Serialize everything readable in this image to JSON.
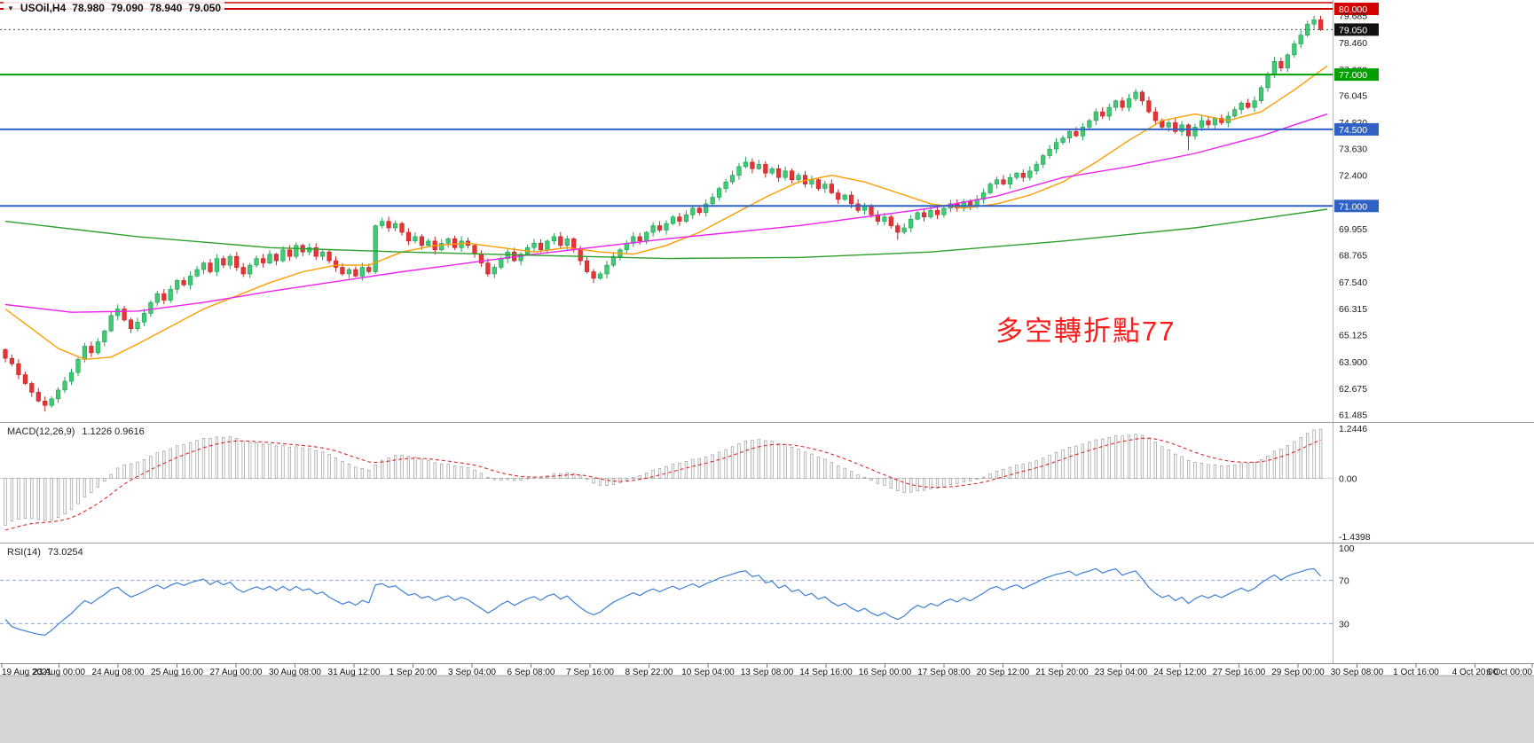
{
  "icons": {
    "symbol_dropdown": "▼"
  },
  "header": {
    "symbol": "USOil,H4",
    "open": "78.980",
    "high": "79.090",
    "low": "78.940",
    "close": "79.050"
  },
  "annotation": {
    "text": "多空轉折點77",
    "color": "#ff1a1a"
  },
  "price_axis": {
    "labels": [
      {
        "text": "80.000",
        "price": 80.0,
        "bg": "#d40000"
      },
      {
        "text": "79.685",
        "price": 79.685
      },
      {
        "text": "79.050",
        "price": 79.05,
        "bg": "#111111"
      },
      {
        "text": "78.460",
        "price": 78.46
      },
      {
        "text": "77.230",
        "price": 77.23
      },
      {
        "text": "77.000",
        "price": 77.0,
        "bg": "#00a000"
      },
      {
        "text": "76.045",
        "price": 76.045
      },
      {
        "text": "74.820",
        "price": 74.82
      },
      {
        "text": "74.500",
        "price": 74.5,
        "bg": "#2f62c4"
      },
      {
        "text": "73.630",
        "price": 73.63
      },
      {
        "text": "72.400",
        "price": 72.4
      },
      {
        "text": "71.000",
        "price": 71.0,
        "bg": "#2f62c4"
      },
      {
        "text": "69.955",
        "price": 69.955
      },
      {
        "text": "68.765",
        "price": 68.765
      },
      {
        "text": "67.540",
        "price": 67.54
      },
      {
        "text": "66.315",
        "price": 66.315
      },
      {
        "text": "65.125",
        "price": 65.125
      },
      {
        "text": "63.900",
        "price": 63.9
      },
      {
        "text": "62.675",
        "price": 62.675
      },
      {
        "text": "61.485",
        "price": 61.485
      }
    ]
  },
  "time_axis": {
    "labels": [
      "19 Aug 2021",
      "23 Aug 00:00",
      "24 Aug 08:00",
      "25 Aug 16:00",
      "27 Aug 00:00",
      "30 Aug 08:00",
      "31 Aug 12:00",
      "1 Sep 20:00",
      "3 Sep 04:00",
      "6 Sep 08:00",
      "7 Sep 16:00",
      "8 Sep 22:00",
      "10 Sep 04:00",
      "13 Sep 08:00",
      "14 Sep 16:00",
      "16 Sep 00:00",
      "17 Sep 08:00",
      "20 Sep 12:00",
      "21 Sep 20:00",
      "23 Sep 04:00",
      "24 Sep 12:00",
      "27 Sep 16:00",
      "29 Sep 00:00",
      "30 Sep 08:00",
      "1 Oct 16:00",
      "4 Oct 20:00",
      "6 Oct 00:00"
    ]
  },
  "chart_data": [
    {
      "type": "candlestick",
      "panel": "price",
      "symbol": "USOil",
      "timeframe": "H4",
      "ohlc_display": {
        "open": "78.980",
        "high": "79.090",
        "low": "78.940",
        "close": "79.050"
      },
      "y_range": [
        61.22,
        80.16
      ],
      "first_open": 64.45,
      "closes": [
        64.05,
        63.8,
        63.3,
        62.9,
        62.5,
        62.1,
        61.9,
        62.2,
        62.6,
        63.0,
        63.4,
        64.0,
        64.6,
        64.3,
        64.8,
        65.3,
        66.0,
        66.3,
        65.8,
        65.4,
        65.7,
        66.1,
        66.6,
        67.0,
        66.7,
        67.2,
        67.6,
        67.4,
        67.8,
        68.1,
        68.4,
        68.0,
        68.6,
        68.3,
        68.7,
        68.2,
        67.9,
        68.3,
        68.6,
        68.4,
        68.8,
        68.5,
        69.0,
        68.7,
        69.2,
        68.9,
        69.1,
        68.7,
        68.9,
        68.5,
        68.2,
        67.9,
        68.1,
        67.8,
        68.2,
        68.0,
        70.1,
        70.3,
        70.0,
        70.2,
        69.8,
        69.4,
        69.6,
        69.2,
        69.4,
        69.0,
        69.3,
        69.5,
        69.1,
        69.4,
        69.2,
        68.8,
        68.4,
        67.9,
        68.2,
        68.6,
        68.9,
        68.5,
        68.8,
        69.1,
        69.3,
        69.0,
        69.4,
        69.6,
        69.2,
        69.5,
        69.0,
        68.5,
        68.0,
        67.7,
        67.9,
        68.3,
        68.7,
        69.0,
        69.3,
        69.6,
        69.4,
        69.8,
        70.1,
        69.9,
        70.2,
        70.5,
        70.3,
        70.6,
        70.9,
        70.7,
        71.1,
        71.4,
        71.8,
        72.1,
        72.4,
        72.8,
        73.0,
        72.7,
        72.9,
        72.5,
        72.7,
        72.3,
        72.6,
        72.2,
        72.4,
        72.0,
        72.2,
        71.8,
        72.0,
        71.6,
        71.3,
        71.5,
        71.1,
        70.8,
        71.0,
        70.6,
        70.3,
        70.5,
        70.1,
        69.8,
        70.0,
        70.4,
        70.7,
        70.5,
        70.8,
        70.6,
        70.9,
        71.1,
        70.9,
        71.2,
        71.0,
        71.3,
        71.6,
        72.0,
        72.2,
        72.0,
        72.3,
        72.5,
        72.3,
        72.6,
        72.9,
        73.3,
        73.6,
        73.9,
        74.1,
        74.4,
        74.2,
        74.6,
        74.9,
        75.3,
        75.1,
        75.5,
        75.8,
        75.5,
        75.9,
        76.2,
        75.8,
        75.3,
        74.9,
        74.6,
        74.8,
        74.4,
        74.7,
        74.2,
        74.6,
        74.9,
        74.7,
        75.0,
        74.8,
        75.1,
        75.4,
        75.7,
        75.5,
        75.8,
        76.4,
        77.0,
        77.6,
        77.3,
        77.9,
        78.4,
        78.8,
        79.3,
        79.5,
        79.05
      ],
      "wick_overrides": {
        "6": {
          "low": 61.62
        },
        "56": {
          "low": 67.9
        },
        "112": {
          "high": 73.25
        },
        "135": {
          "low": 69.45
        },
        "179": {
          "low": 73.55
        },
        "198": {
          "high": 79.69
        }
      },
      "up_color": "#3fca73",
      "up_stroke": "#1f9e53",
      "down_color": "#e63434",
      "down_stroke": "#c12222",
      "moving_averages": [
        {
          "name": "fast-ma",
          "color": "#ff9c00",
          "points": [
            [
              0,
              66.3
            ],
            [
              4,
              65.4
            ],
            [
              8,
              64.5
            ],
            [
              12,
              64.0
            ],
            [
              16,
              64.1
            ],
            [
              20,
              64.7
            ],
            [
              25,
              65.5
            ],
            [
              30,
              66.3
            ],
            [
              35,
              66.9
            ],
            [
              40,
              67.5
            ],
            [
              45,
              68.0
            ],
            [
              50,
              68.3
            ],
            [
              55,
              68.3
            ],
            [
              60,
              68.9
            ],
            [
              65,
              69.2
            ],
            [
              70,
              69.3
            ],
            [
              75,
              69.1
            ],
            [
              80,
              68.9
            ],
            [
              85,
              69.1
            ],
            [
              90,
              68.9
            ],
            [
              95,
              68.8
            ],
            [
              100,
              69.2
            ],
            [
              105,
              69.8
            ],
            [
              110,
              70.6
            ],
            [
              115,
              71.4
            ],
            [
              120,
              72.1
            ],
            [
              125,
              72.4
            ],
            [
              130,
              72.1
            ],
            [
              135,
              71.6
            ],
            [
              140,
              71.1
            ],
            [
              145,
              70.9
            ],
            [
              150,
              71.1
            ],
            [
              155,
              71.5
            ],
            [
              160,
              72.1
            ],
            [
              165,
              73.0
            ],
            [
              170,
              74.0
            ],
            [
              175,
              74.9
            ],
            [
              180,
              75.2
            ],
            [
              185,
              74.9
            ],
            [
              190,
              75.3
            ],
            [
              195,
              76.3
            ],
            [
              200,
              77.4
            ]
          ]
        },
        {
          "name": "mid-ma",
          "color": "#ee22ee",
          "points": [
            [
              0,
              66.5
            ],
            [
              10,
              66.15
            ],
            [
              20,
              66.2
            ],
            [
              30,
              66.6
            ],
            [
              40,
              67.1
            ],
            [
              50,
              67.55
            ],
            [
              60,
              68.0
            ],
            [
              70,
              68.4
            ],
            [
              80,
              68.8
            ],
            [
              90,
              69.15
            ],
            [
              100,
              69.5
            ],
            [
              110,
              69.8
            ],
            [
              120,
              70.1
            ],
            [
              130,
              70.5
            ],
            [
              140,
              70.9
            ],
            [
              150,
              71.45
            ],
            [
              160,
              72.3
            ],
            [
              170,
              72.8
            ],
            [
              180,
              73.4
            ],
            [
              190,
              74.2
            ],
            [
              200,
              75.2
            ]
          ]
        },
        {
          "name": "slow-ma",
          "color": "#2ca02c",
          "points": [
            [
              0,
              70.3
            ],
            [
              20,
              69.6
            ],
            [
              40,
              69.1
            ],
            [
              60,
              68.9
            ],
            [
              80,
              68.75
            ],
            [
              100,
              68.6
            ],
            [
              120,
              68.65
            ],
            [
              140,
              68.9
            ],
            [
              160,
              69.4
            ],
            [
              180,
              70.0
            ],
            [
              200,
              70.85
            ]
          ]
        }
      ],
      "horizontal_lines": [
        {
          "price": 80.28,
          "color": "#d40000",
          "width": 1.6
        },
        {
          "price": 80.0,
          "color": "#d40000",
          "width": 2,
          "label": "80.000"
        },
        {
          "price": 77.0,
          "color": "#00a000",
          "width": 2,
          "label": "77.000"
        },
        {
          "price": 74.5,
          "color": "#2f62c4",
          "width": 2,
          "label": "74.500"
        },
        {
          "price": 71.0,
          "color": "#2f62c4",
          "width": 2,
          "label": "71.000"
        }
      ],
      "current_price": {
        "value": 79.05,
        "label": "79.050"
      }
    },
    {
      "type": "macd-histogram",
      "label": "MACD(12,26,9)",
      "values_display": "1.1226 0.9616",
      "macd_value": 1.1226,
      "signal_value": 0.9616,
      "scale_labels": [
        "1.2446",
        "0.00",
        "-1.4398"
      ],
      "y_range": [
        -1.55,
        1.35
      ],
      "params": {
        "fast": 12,
        "slow": 26,
        "signal": 9
      },
      "histogram_color": "#9a9a9a",
      "signal_color": "#dd2a2a"
    },
    {
      "type": "line",
      "label": "RSI(14)",
      "value_display": "73.0254",
      "rsi_value": 73.0254,
      "period": 14,
      "scale_labels": [
        "100",
        "70",
        "30"
      ],
      "levels": [
        70,
        30
      ],
      "y_range": [
        0,
        100
      ],
      "line_color": "#3d7fd6",
      "level_color": "#8aa8d8"
    }
  ]
}
